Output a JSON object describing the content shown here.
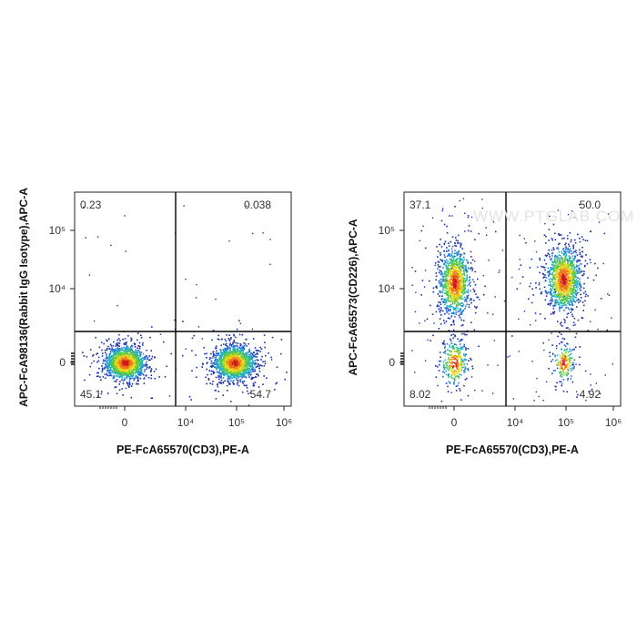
{
  "watermark": "WWW.PTGLAB.COM",
  "chart_data": [
    {
      "type": "scatter",
      "title": "",
      "xlabel": "PE-FcA65570(CD3),PE-A",
      "ylabel": "APC-FcA98136(Rabbit IgG Isotype),APC-A",
      "x_ticks": [
        "0",
        "10⁴",
        "10⁵",
        "10⁶"
      ],
      "y_ticks": [
        "0",
        "10⁴",
        "10⁵"
      ],
      "quadrant_values": {
        "upper_left": "0.23",
        "upper_right": "0.038",
        "lower_left": "45.1",
        "lower_right": "54.7"
      },
      "populations": [
        {
          "x": 0,
          "y": 0,
          "share": 0.45
        },
        {
          "x": 95000,
          "y": 0,
          "share": 0.55
        }
      ]
    },
    {
      "type": "scatter",
      "title": "",
      "xlabel": "PE-FcA65570(CD3),PE-A",
      "ylabel": "APC-FcA65573(CD226),APC-A",
      "x_ticks": [
        "0",
        "10⁴",
        "10⁵",
        "10⁶"
      ],
      "y_ticks": [
        "0",
        "10⁴",
        "10⁵"
      ],
      "quadrant_values": {
        "upper_left": "37.1",
        "upper_right": "50.0",
        "lower_left": "8.02",
        "lower_right": "4.92"
      },
      "populations": [
        {
          "x": 0,
          "y": 20000,
          "share": 0.37
        },
        {
          "x": 95000,
          "y": 25000,
          "share": 0.5
        },
        {
          "x": 0,
          "y": 0,
          "share": 0.08
        },
        {
          "x": 95000,
          "y": 0,
          "share": 0.05
        }
      ]
    }
  ]
}
